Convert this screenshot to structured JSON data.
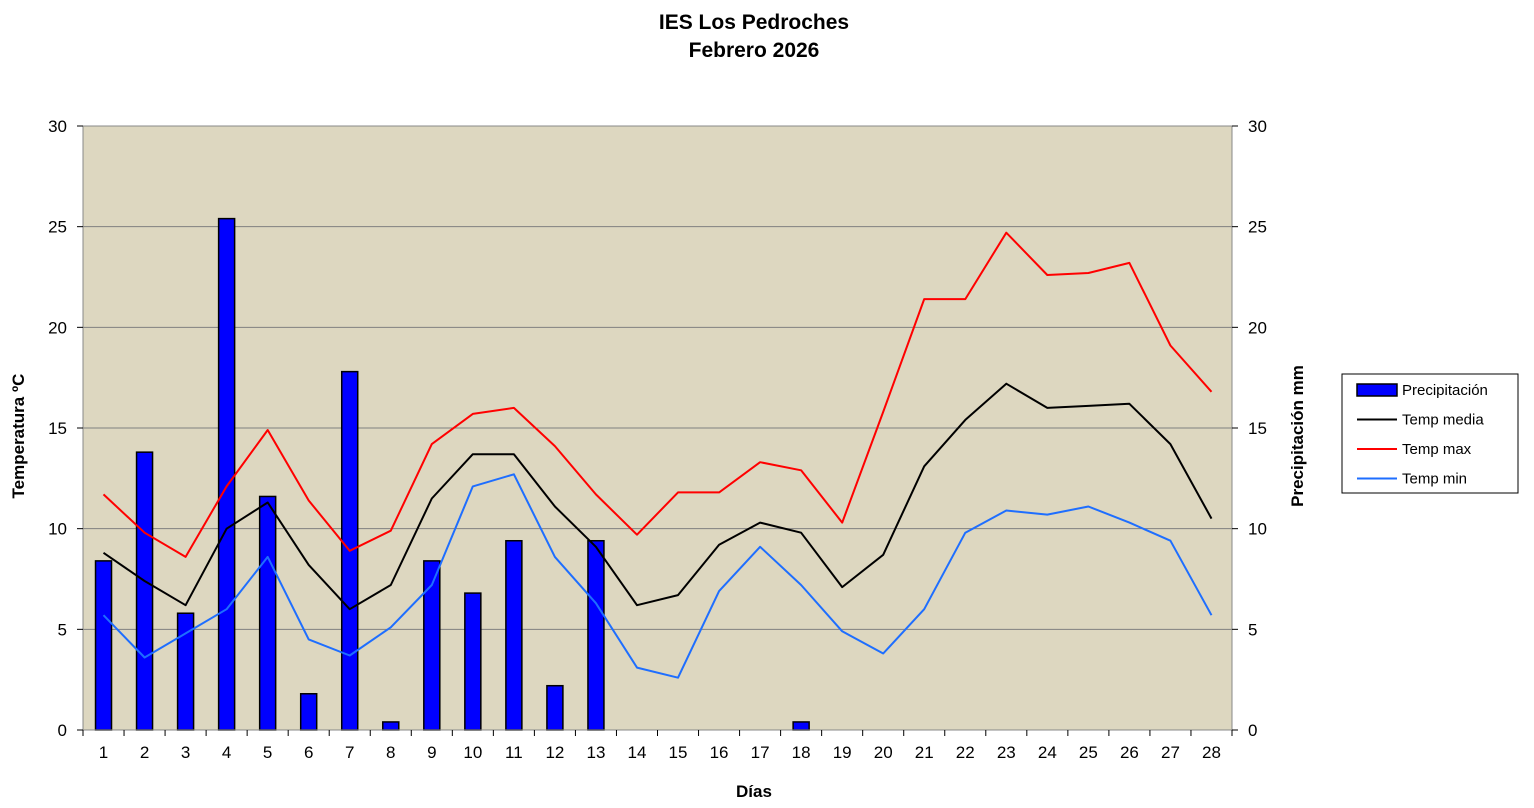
{
  "chart_data": {
    "type": "bar",
    "title": "IES Los Pedroches",
    "subtitle": "Febrero 2026",
    "xlabel": "Días",
    "ylabel": "Temperatura ºC",
    "ylabel_right": "Precipitación mm",
    "ylim": [
      0,
      30
    ],
    "ylim_right": [
      0,
      30
    ],
    "yticks": [
      0,
      5,
      10,
      15,
      20,
      25,
      30
    ],
    "grid": true,
    "legend_position": "right",
    "plot_background": "#ddd7c0",
    "categories": [
      "1",
      "2",
      "3",
      "4",
      "5",
      "6",
      "7",
      "8",
      "9",
      "10",
      "11",
      "12",
      "13",
      "14",
      "15",
      "16",
      "17",
      "18",
      "19",
      "20",
      "21",
      "22",
      "23",
      "24",
      "25",
      "26",
      "27",
      "28"
    ],
    "series": [
      {
        "name": "Precipitación",
        "type": "bar",
        "axis": "right",
        "color": "#0000ff",
        "values": [
          8.4,
          13.8,
          5.8,
          25.4,
          11.6,
          1.8,
          17.8,
          0.4,
          8.4,
          6.8,
          9.4,
          2.2,
          9.4,
          0,
          0,
          0,
          0,
          0.4,
          0,
          0,
          0,
          0,
          0,
          0,
          0,
          0,
          0,
          0
        ]
      },
      {
        "name": "Temp media",
        "type": "line",
        "axis": "left",
        "color": "#000000",
        "values": [
          8.8,
          7.4,
          6.2,
          10.0,
          11.3,
          8.2,
          6.0,
          7.2,
          11.5,
          13.7,
          13.7,
          11.1,
          9.1,
          6.2,
          6.7,
          9.2,
          10.3,
          9.8,
          7.1,
          8.7,
          13.1,
          15.4,
          17.2,
          16.0,
          16.1,
          16.2,
          14.2,
          10.5
        ]
      },
      {
        "name": "Temp max",
        "type": "line",
        "axis": "left",
        "color": "#ff0000",
        "values": [
          11.7,
          9.8,
          8.6,
          12.1,
          14.9,
          11.4,
          8.9,
          9.9,
          14.2,
          15.7,
          16.0,
          14.1,
          11.7,
          9.7,
          11.8,
          11.8,
          13.3,
          12.9,
          10.3,
          15.8,
          21.4,
          21.4,
          24.7,
          22.6,
          22.7,
          23.2,
          19.1,
          16.8
        ]
      },
      {
        "name": "Temp min",
        "type": "line",
        "axis": "left",
        "color": "#1e6eff",
        "values": [
          5.7,
          3.6,
          4.8,
          6.0,
          8.6,
          4.5,
          3.7,
          5.1,
          7.2,
          12.1,
          12.7,
          8.6,
          6.3,
          3.1,
          2.6,
          6.9,
          9.1,
          7.2,
          4.9,
          3.8,
          6.0,
          9.8,
          10.9,
          10.7,
          11.1,
          10.3,
          9.4,
          5.7
        ]
      }
    ]
  }
}
